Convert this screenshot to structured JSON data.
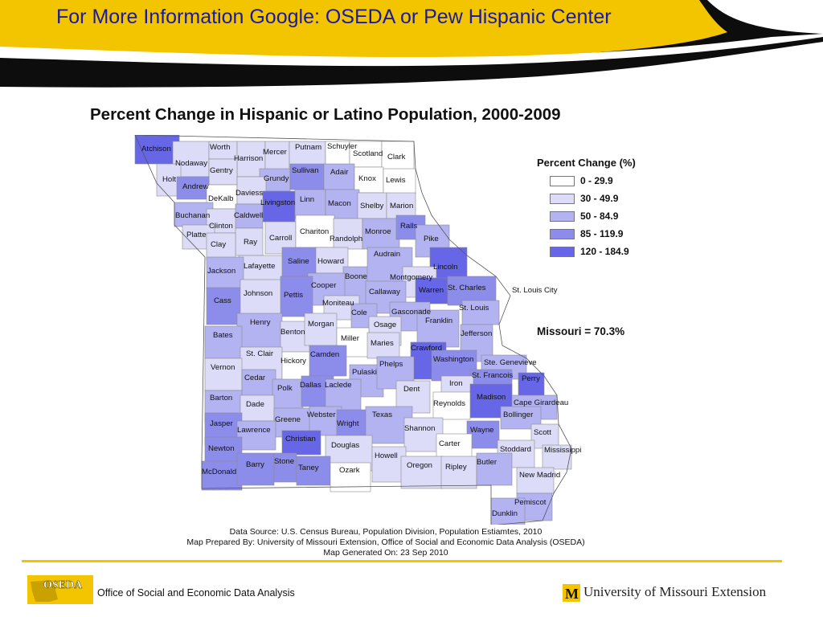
{
  "banner": {
    "title": "For More Information Google:  OSEDA or Pew Hispanic Center"
  },
  "map": {
    "title": "Percent Change in Hispanic or Latino Population, 2000-2009",
    "legend": {
      "title": "Percent Change (%)",
      "classes": [
        {
          "label": "0 - 29.9",
          "color": "#ffffff"
        },
        {
          "label": "30 - 49.9",
          "color": "#dcdcf8"
        },
        {
          "label": "50 - 84.9",
          "color": "#b3b3f2"
        },
        {
          "label": "85 - 119.9",
          "color": "#8c8cea"
        },
        {
          "label": "120 - 184.9",
          "color": "#6666e6"
        }
      ]
    },
    "state_total": "Missouri = 70.3%",
    "city_label": "St. Louis City",
    "counties": [
      {
        "name": "Atchison",
        "class": 4
      },
      {
        "name": "Nodaway",
        "class": 1
      },
      {
        "name": "Worth",
        "class": 1
      },
      {
        "name": "Harrison",
        "class": 1
      },
      {
        "name": "Mercer",
        "class": 1
      },
      {
        "name": "Putnam",
        "class": 1
      },
      {
        "name": "Schuyler",
        "class": 0
      },
      {
        "name": "Scotland",
        "class": 0
      },
      {
        "name": "Clark",
        "class": 0
      },
      {
        "name": "Holt",
        "class": 1
      },
      {
        "name": "Gentry",
        "class": 1
      },
      {
        "name": "Grundy",
        "class": 2
      },
      {
        "name": "Sullivan",
        "class": 3
      },
      {
        "name": "Adair",
        "class": 2
      },
      {
        "name": "Knox",
        "class": 0
      },
      {
        "name": "Lewis",
        "class": 0
      },
      {
        "name": "Andrew",
        "class": 3
      },
      {
        "name": "DeKalb",
        "class": 0
      },
      {
        "name": "Daviess",
        "class": 1
      },
      {
        "name": "Livingston",
        "class": 4
      },
      {
        "name": "Linn",
        "class": 2
      },
      {
        "name": "Macon",
        "class": 2
      },
      {
        "name": "Shelby",
        "class": 1
      },
      {
        "name": "Marion",
        "class": 1
      },
      {
        "name": "Buchanan",
        "class": 2
      },
      {
        "name": "Clinton",
        "class": 1
      },
      {
        "name": "Caldwell",
        "class": 2
      },
      {
        "name": "Ray",
        "class": 1
      },
      {
        "name": "Carroll",
        "class": 1
      },
      {
        "name": "Chariton",
        "class": 0
      },
      {
        "name": "Randolph",
        "class": 1
      },
      {
        "name": "Monroe",
        "class": 2
      },
      {
        "name": "Ralls",
        "class": 3
      },
      {
        "name": "Pike",
        "class": 2
      },
      {
        "name": "Platte",
        "class": 1
      },
      {
        "name": "Clay",
        "class": 1
      },
      {
        "name": "Lafayette",
        "class": 1
      },
      {
        "name": "Saline",
        "class": 3
      },
      {
        "name": "Howard",
        "class": 1
      },
      {
        "name": "Boone",
        "class": 2
      },
      {
        "name": "Audrain",
        "class": 2
      },
      {
        "name": "Lincoln",
        "class": 4
      },
      {
        "name": "Jackson",
        "class": 2
      },
      {
        "name": "Montgomery",
        "class": 1
      },
      {
        "name": "Cooper",
        "class": 2
      },
      {
        "name": "Callaway",
        "class": 2
      },
      {
        "name": "Warren",
        "class": 4
      },
      {
        "name": "St. Charles",
        "class": 3
      },
      {
        "name": "Cass",
        "class": 3
      },
      {
        "name": "Johnson",
        "class": 1
      },
      {
        "name": "Pettis",
        "class": 3
      },
      {
        "name": "Moniteau",
        "class": 1
      },
      {
        "name": "Cole",
        "class": 2
      },
      {
        "name": "Gasconade",
        "class": 2
      },
      {
        "name": "St. Louis",
        "class": 2
      },
      {
        "name": "Franklin",
        "class": 2
      },
      {
        "name": "Henry",
        "class": 2
      },
      {
        "name": "Benton",
        "class": 1
      },
      {
        "name": "Morgan",
        "class": 1
      },
      {
        "name": "Osage",
        "class": 1
      },
      {
        "name": "Miller",
        "class": 0
      },
      {
        "name": "Maries",
        "class": 1
      },
      {
        "name": "Jefferson",
        "class": 2
      },
      {
        "name": "Bates",
        "class": 2
      },
      {
        "name": "St. Clair",
        "class": 1
      },
      {
        "name": "Hickory",
        "class": 0
      },
      {
        "name": "Camden",
        "class": 3
      },
      {
        "name": "Crawford",
        "class": 4
      },
      {
        "name": "Washington",
        "class": 3
      },
      {
        "name": "Ste. Genevieve",
        "class": 2
      },
      {
        "name": "Vernon",
        "class": 1
      },
      {
        "name": "Cedar",
        "class": 2
      },
      {
        "name": "Pulaski",
        "class": 2
      },
      {
        "name": "Phelps",
        "class": 2
      },
      {
        "name": "St. Francois",
        "class": 3
      },
      {
        "name": "Perry",
        "class": 4
      },
      {
        "name": "Polk",
        "class": 2
      },
      {
        "name": "Dallas",
        "class": 3
      },
      {
        "name": "Laclede",
        "class": 2
      },
      {
        "name": "Dent",
        "class": 1
      },
      {
        "name": "Iron",
        "class": 1
      },
      {
        "name": "Barton",
        "class": 2
      },
      {
        "name": "Dade",
        "class": 1
      },
      {
        "name": "Madison",
        "class": 4
      },
      {
        "name": "Cape Girardeau",
        "class": 2
      },
      {
        "name": "Reynolds",
        "class": 0
      },
      {
        "name": "Bollinger",
        "class": 2
      },
      {
        "name": "Jasper",
        "class": 3
      },
      {
        "name": "Greene",
        "class": 2
      },
      {
        "name": "Webster",
        "class": 2
      },
      {
        "name": "Wright",
        "class": 3
      },
      {
        "name": "Texas",
        "class": 2
      },
      {
        "name": "Shannon",
        "class": 1
      },
      {
        "name": "Wayne",
        "class": 3
      },
      {
        "name": "Lawrence",
        "class": 2
      },
      {
        "name": "Scott",
        "class": 1
      },
      {
        "name": "Newton",
        "class": 3
      },
      {
        "name": "Christian",
        "class": 4
      },
      {
        "name": "Douglas",
        "class": 1
      },
      {
        "name": "Carter",
        "class": 0
      },
      {
        "name": "Stoddard",
        "class": 1
      },
      {
        "name": "Mississippi",
        "class": 1
      },
      {
        "name": "Howell",
        "class": 1
      },
      {
        "name": "McDonald",
        "class": 3
      },
      {
        "name": "Barry",
        "class": 3
      },
      {
        "name": "Stone",
        "class": 3
      },
      {
        "name": "Taney",
        "class": 3
      },
      {
        "name": "Ozark",
        "class": 0
      },
      {
        "name": "Oregon",
        "class": 1
      },
      {
        "name": "Ripley",
        "class": 1
      },
      {
        "name": "Butler",
        "class": 2
      },
      {
        "name": "New Madrid",
        "class": 1
      },
      {
        "name": "Pemiscot",
        "class": 2
      },
      {
        "name": "Dunklin",
        "class": 2
      }
    ]
  },
  "source": {
    "line1": "Data Source: U.S. Census Bureau, Population Division, Population Estiamtes, 2010",
    "line2": "Map Prepared By: University of Missouri Extension, Office of Social and Economic Data Analysis (OSEDA)",
    "line3": "Map Generated On: 23 Sep 2010"
  },
  "footer": {
    "oseda_logo_text": "OSEDA",
    "oseda_name": "Office of Social and Economic Data Analysis",
    "extension_name": "University of Missouri Extension",
    "extension_logo_text": "M"
  },
  "colors": {
    "banner_gold": "#f2c500",
    "banner_black": "#0d0d0d",
    "title_blue": "#1a1aa0"
  }
}
